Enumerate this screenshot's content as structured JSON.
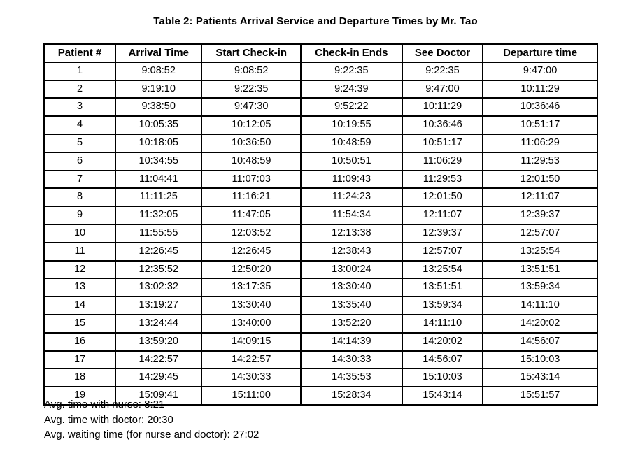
{
  "title": "Table 2: Patients Arrival Service and Departure Times by Mr. Tao",
  "table": {
    "columns": [
      "Patient #",
      "Arrival Time",
      "Start Check-in",
      "Check-in Ends",
      "See Doctor",
      "Departure time"
    ],
    "rows": [
      [
        "1",
        "9:08:52",
        "9:08:52",
        "9:22:35",
        "9:22:35",
        "9:47:00"
      ],
      [
        "2",
        "9:19:10",
        "9:22:35",
        "9:24:39",
        "9:47:00",
        "10:11:29"
      ],
      [
        "3",
        "9:38:50",
        "9:47:30",
        "9:52:22",
        "10:11:29",
        "10:36:46"
      ],
      [
        "4",
        "10:05:35",
        "10:12:05",
        "10:19:55",
        "10:36:46",
        "10:51:17"
      ],
      [
        "5",
        "10:18:05",
        "10:36:50",
        "10:48:59",
        "10:51:17",
        "11:06:29"
      ],
      [
        "6",
        "10:34:55",
        "10:48:59",
        "10:50:51",
        "11:06:29",
        "11:29:53"
      ],
      [
        "7",
        "11:04:41",
        "11:07:03",
        "11:09:43",
        "11:29:53",
        "12:01:50"
      ],
      [
        "8",
        "11:11:25",
        "11:16:21",
        "11:24:23",
        "12:01:50",
        "12:11:07"
      ],
      [
        "9",
        "11:32:05",
        "11:47:05",
        "11:54:34",
        "12:11:07",
        "12:39:37"
      ],
      [
        "10",
        "11:55:55",
        "12:03:52",
        "12:13:38",
        "12:39:37",
        "12:57:07"
      ],
      [
        "11",
        "12:26:45",
        "12:26:45",
        "12:38:43",
        "12:57:07",
        "13:25:54"
      ],
      [
        "12",
        "12:35:52",
        "12:50:20",
        "13:00:24",
        "13:25:54",
        "13:51:51"
      ],
      [
        "13",
        "13:02:32",
        "13:17:35",
        "13:30:40",
        "13:51:51",
        "13:59:34"
      ],
      [
        "14",
        "13:19:27",
        "13:30:40",
        "13:35:40",
        "13:59:34",
        "14:11:10"
      ],
      [
        "15",
        "13:24:44",
        "13:40:00",
        "13:52:20",
        "14:11:10",
        "14:20:02"
      ],
      [
        "16",
        "13:59:20",
        "14:09:15",
        "14:14:39",
        "14:20:02",
        "14:56:07"
      ],
      [
        "17",
        "14:22:57",
        "14:22:57",
        "14:30:33",
        "14:56:07",
        "15:10:03"
      ],
      [
        "18",
        "14:29:45",
        "14:30:33",
        "14:35:53",
        "15:10:03",
        "15:43:14"
      ],
      [
        "19",
        "15:09:41",
        "15:11:00",
        "15:28:34",
        "15:43:14",
        "15:51:57"
      ]
    ]
  },
  "summary": {
    "lines": [
      "Avg. time with nurse: 8:21",
      "Avg. time with doctor: 20:30",
      "Avg. waiting time (for nurse and doctor): 27:02"
    ]
  },
  "colors": {
    "background": "#ffffff",
    "text": "#000000",
    "border": "#000000"
  }
}
